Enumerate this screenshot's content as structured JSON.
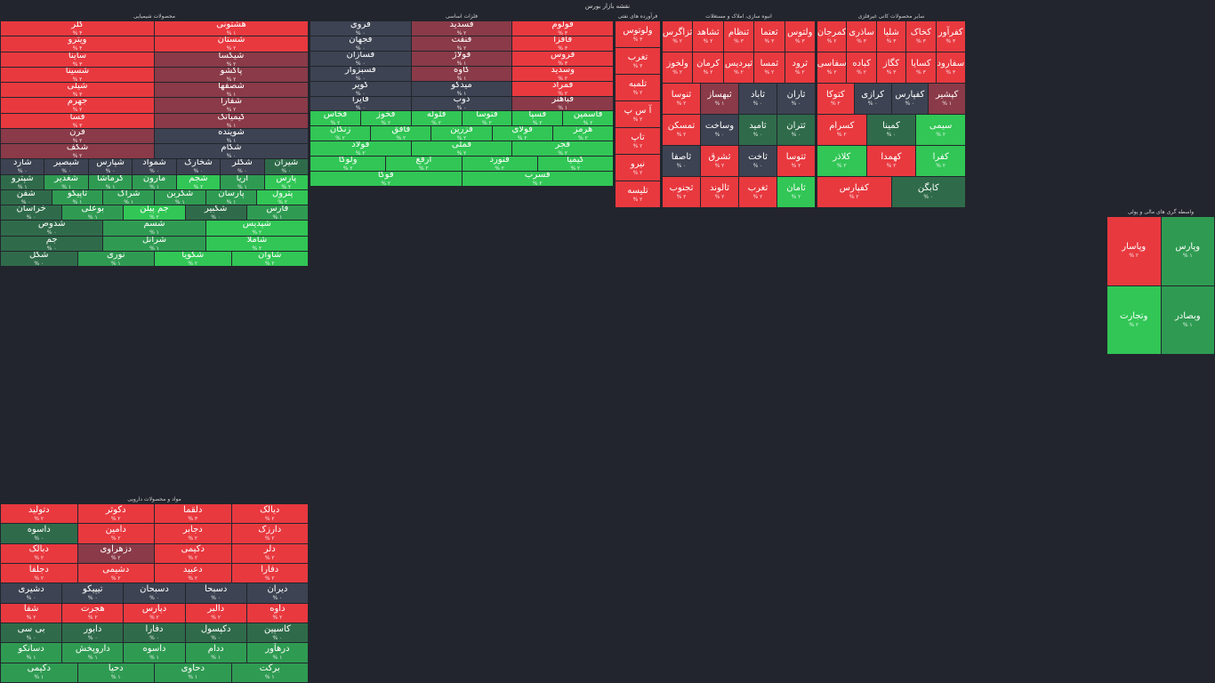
{
  "page_title": "نقشه بازار بورس",
  "colors": {
    "r": "#e8393f",
    "m": "#8a3a48",
    "n": "#3d4352",
    "d": "#2f6b4a",
    "g": "#2f9b52",
    "G": "#31c655"
  },
  "sectors": [
    {
      "title": "محصولات شیمیایی",
      "tiles": [
        [
          "هشتونی",
          "r",
          "% ۱"
        ],
        [
          "کلر",
          "r",
          "% ۴"
        ],
        [
          "شستان",
          "r",
          "% ۲"
        ],
        [
          "ویترو",
          "r",
          "% ۴"
        ],
        [
          "شیکسا",
          "m",
          "% ۲"
        ],
        [
          "ساینا",
          "r",
          "% ۳"
        ],
        [
          "پاکشو",
          "m",
          "% ۲"
        ],
        [
          "شسینا",
          "r",
          "% ۲"
        ],
        [
          "شصفها",
          "m",
          "% ۱"
        ],
        [
          "شیلی",
          "r",
          "% ۳"
        ],
        [
          "شفارا",
          "m",
          "% ۲"
        ],
        [
          "جهرم",
          "r",
          "% ۲"
        ],
        [
          "کیمیاتک",
          "m",
          "% ۱"
        ],
        [
          "فسا",
          "r",
          "% ۳"
        ],
        [
          "شوینده",
          "n",
          "% ۱"
        ],
        [
          "قرن",
          "m",
          "% ۲"
        ],
        [
          "شکام",
          "n",
          "% ۰"
        ],
        [
          "شکف",
          "m",
          "% ۲"
        ],
        [
          "شیران",
          "d",
          "% ۰"
        ],
        [
          "شکلر",
          "n",
          "% ۰"
        ],
        [
          "شخارک",
          "n",
          "% ۰"
        ],
        [
          "شمواد",
          "n",
          "% ۰"
        ],
        [
          "شپارس",
          "n",
          "% ۰"
        ],
        [
          "شبصیر",
          "n",
          "% ۰"
        ],
        [
          "شارد",
          "n",
          "% ۰"
        ],
        [
          "پارس",
          "G",
          "% ۲"
        ],
        [
          "آریا",
          "g",
          "% ۱"
        ],
        [
          "شجم",
          "G",
          "% ۲"
        ],
        [
          "مارون",
          "g",
          "% ۱"
        ],
        [
          "کرماشا",
          "g",
          "% ۱"
        ],
        [
          "شغدیر",
          "g",
          "% ۱"
        ],
        [
          "شپترو",
          "d",
          "% ۱"
        ],
        [
          "پترول",
          "G",
          "% ۲"
        ],
        [
          "پارسان",
          "g",
          "% ۱"
        ],
        [
          "شکربن",
          "g",
          "% ۱"
        ],
        [
          "شراک",
          "g",
          "% ۱"
        ],
        [
          "تاپیکو",
          "g",
          "% ۱"
        ],
        [
          "شفن",
          "d",
          "% ۰"
        ],
        [
          "فارس",
          "g",
          "% ۱"
        ],
        [
          "شکبیر",
          "d",
          "% ۰"
        ],
        [
          "جم پیلن",
          "G",
          "% ۲"
        ],
        [
          "بوعلی",
          "g",
          "% ۱"
        ],
        [
          "خراسان",
          "d",
          "% ۰"
        ],
        [
          "شپدیس",
          "G",
          "% ۲"
        ],
        [
          "شسم",
          "g",
          "% ۱"
        ],
        [
          "شدوص",
          "d",
          "% ۰"
        ],
        [
          "شاملا",
          "G",
          "% ۲"
        ],
        [
          "شرانل",
          "g",
          "% ۱"
        ],
        [
          "جم",
          "d",
          "% ۰"
        ],
        [
          "شاوان",
          "G",
          "% ۲"
        ],
        [
          "شکویا",
          "G",
          "% ۲"
        ],
        [
          "نوری",
          "g",
          "% ۱"
        ],
        [
          "شگل",
          "d",
          "% ۰"
        ]
      ]
    },
    {
      "title": "فلزات اساسی",
      "tiles": [
        [
          "فولوم",
          "r",
          "% ۳"
        ],
        [
          "فسدید",
          "m",
          "% ۲"
        ],
        [
          "فروی",
          "n",
          "% ۰"
        ],
        [
          "فافزا",
          "r",
          "% ۳"
        ],
        [
          "فنفت",
          "m",
          "% ۲"
        ],
        [
          "فجهان",
          "n",
          "% ۰"
        ],
        [
          "فروس",
          "r",
          "% ۳"
        ],
        [
          "فولاژ",
          "m",
          "% ۱"
        ],
        [
          "فسازان",
          "n",
          "% ۰"
        ],
        [
          "وسدید",
          "r",
          "% ۲"
        ],
        [
          "کاوه",
          "m",
          "% ۱"
        ],
        [
          "فسبزوار",
          "n",
          "% ۰"
        ],
        [
          "فمراد",
          "r",
          "% ۲"
        ],
        [
          "میدکو",
          "n",
          "% ۱"
        ],
        [
          "کویر",
          "n",
          "% ۰"
        ],
        [
          "فباهنر",
          "m",
          "% ۱"
        ],
        [
          "ذوب",
          "n",
          "% ۰"
        ],
        [
          "فایرا",
          "n",
          "% ۰"
        ],
        [
          "فاسمین",
          "G",
          "% ۲"
        ],
        [
          "فسپا",
          "G",
          "% ۲"
        ],
        [
          "فتوسا",
          "G",
          "% ۲"
        ],
        [
          "فلوله",
          "G",
          "% ۲"
        ],
        [
          "فخوز",
          "G",
          "% ۲"
        ],
        [
          "فخاس",
          "G",
          "% ۲"
        ],
        [
          "هرمز",
          "G",
          "% ۲"
        ],
        [
          "فولای",
          "G",
          "% ۲"
        ],
        [
          "فزرین",
          "G",
          "% ۲"
        ],
        [
          "فافق",
          "G",
          "% ۲"
        ],
        [
          "زنگان",
          "G",
          "% ۲"
        ],
        [
          "فجر",
          "G",
          "% ۲"
        ],
        [
          "فملی",
          "G",
          "% ۲"
        ],
        [
          "فولاد",
          "G",
          "% ۲"
        ],
        [
          "کیمیا",
          "G",
          "% ۲"
        ],
        [
          "فنورد",
          "G",
          "% ۲"
        ],
        [
          "ارفع",
          "G",
          "% ۲"
        ],
        [
          "ولوکا",
          "G",
          "% ۲"
        ],
        [
          "فسرب",
          "G",
          "% ۲"
        ],
        [
          "فوکا",
          "G",
          "% ۲"
        ]
      ]
    },
    {
      "title": "فرآورده های نفتی",
      "tiles": [
        [
          "ولوتوس",
          "r",
          "% ۳"
        ],
        [
          "تغرب",
          "r",
          "% ۳"
        ],
        [
          "تلمبه",
          "r",
          "% ۲"
        ],
        [
          "آ س پ",
          "r",
          "% ۲"
        ],
        [
          "تاپ",
          "r",
          "% ۲"
        ],
        [
          "نیرو",
          "r",
          "% ۲"
        ],
        [
          "تلیسه",
          "r",
          "% ۲"
        ]
      ]
    },
    {
      "title": "انبوه سازی، املاک و مستغلات",
      "tiles": [
        [
          "ولتوس",
          "r",
          "% ۳"
        ],
        [
          "ثعتما",
          "r",
          "% ۳"
        ],
        [
          "ثنظام",
          "r",
          "% ۳"
        ],
        [
          "ثشاهد",
          "r",
          "% ۲"
        ],
        [
          "ثزاگرس",
          "r",
          "% ۲"
        ],
        [
          "ثرود",
          "r",
          "% ۲"
        ],
        [
          "ثمسا",
          "r",
          "% ۲"
        ],
        [
          "ثپردیس",
          "r",
          "% ۲"
        ],
        [
          "کرمان",
          "r",
          "% ۲"
        ],
        [
          "ولخوز",
          "r",
          "% ۲"
        ],
        [
          "ثاران",
          "n",
          "% ۰"
        ],
        [
          "ثاباد",
          "n",
          "% ۰"
        ],
        [
          "ثبهساز",
          "m",
          "% ۱"
        ],
        [
          "ثنوسا",
          "r",
          "% ۲"
        ],
        [
          "ثتران",
          "d",
          "% ۰"
        ],
        [
          "ثامید",
          "d",
          "% ۰"
        ],
        [
          "وساخت",
          "n",
          "% ۰"
        ],
        [
          "تمسکن",
          "r",
          "% ۲"
        ],
        [
          "ثتوسا",
          "r",
          "% ۲"
        ],
        [
          "ثاخت",
          "n",
          "% ۰"
        ],
        [
          "ثشرق",
          "r",
          "% ۲"
        ],
        [
          "ثاصفا",
          "n",
          "% ۰"
        ],
        [
          "ثامان",
          "G",
          "% ۲"
        ],
        [
          "ثغرب",
          "r",
          "% ۲"
        ],
        [
          "ثالوند",
          "r",
          "% ۲"
        ],
        [
          "ثجنوب",
          "r",
          "% ۲"
        ]
      ]
    },
    {
      "title": "سایر محصولات کانی غیرفلزی",
      "tiles": [
        [
          "کفرآور",
          "r",
          "% ۳"
        ],
        [
          "کخاک",
          "r",
          "% ۳"
        ],
        [
          "شلیا",
          "r",
          "% ۳"
        ],
        [
          "ساذری",
          "r",
          "% ۳"
        ],
        [
          "کمرجان",
          "r",
          "% ۲"
        ],
        [
          "سفارود",
          "r",
          "% ۳"
        ],
        [
          "کسایا",
          "r",
          "% ۳"
        ],
        [
          "کگاز",
          "r",
          "% ۳"
        ],
        [
          "کباده",
          "r",
          "% ۲"
        ],
        [
          "سفاسی",
          "r",
          "% ۲"
        ],
        [
          "کپشیر",
          "m",
          "% ۱"
        ],
        [
          "کفپارس",
          "n",
          "% ۰"
        ],
        [
          "کرازی",
          "n",
          "% ۰"
        ],
        [
          "کتوکا",
          "r",
          "% ۲"
        ],
        [
          "سیمی",
          "G",
          "% ۲"
        ],
        [
          "کمینا",
          "d",
          "% ۰"
        ],
        [
          "کسرام",
          "r",
          "% ۲"
        ],
        [
          "کفرا",
          "G",
          "% ۲"
        ],
        [
          "کهمدا",
          "r",
          "% ۲"
        ],
        [
          "کلاذر",
          "G",
          "% ۲"
        ],
        [
          "کابگن",
          "d",
          "% ۰"
        ],
        [
          "کفپارس",
          "r",
          "% ۲"
        ]
      ]
    },
    {
      "title": "مواد و محصولات دارویی",
      "tiles": [
        [
          "دیالک",
          "r",
          "% ۲"
        ],
        [
          "دلقما",
          "r",
          "% ۳"
        ],
        [
          "دکوثر",
          "r",
          "% ۲"
        ],
        [
          "دتولید",
          "r",
          "% ۲"
        ],
        [
          "دارزک",
          "r",
          "% ۲"
        ],
        [
          "دجابر",
          "r",
          "% ۲"
        ],
        [
          "دامین",
          "r",
          "% ۲"
        ],
        [
          "داسوه",
          "d",
          "% ۰"
        ],
        [
          "دلر",
          "r",
          "% ۲"
        ],
        [
          "دکیمی",
          "r",
          "% ۲"
        ],
        [
          "دزهراوی",
          "m",
          "% ۲"
        ],
        [
          "دبالک",
          "r",
          "% ۲"
        ],
        [
          "دفارا",
          "r",
          "% ۲"
        ],
        [
          "دعبید",
          "r",
          "% ۲"
        ],
        [
          "دشیمی",
          "r",
          "% ۲"
        ],
        [
          "دجلفا",
          "r",
          "% ۲"
        ],
        [
          "دیران",
          "n",
          "% ۰"
        ],
        [
          "دسبحا",
          "n",
          "% ۰"
        ],
        [
          "دسبحان",
          "n",
          "% ۰"
        ],
        [
          "تیپیکو",
          "n",
          "% ۰"
        ],
        [
          "دشیری",
          "n",
          "% ۰"
        ],
        [
          "داوه",
          "r",
          "% ۲"
        ],
        [
          "دالبر",
          "r",
          "% ۲"
        ],
        [
          "دپارس",
          "r",
          "% ۲"
        ],
        [
          "هجرت",
          "r",
          "% ۲"
        ],
        [
          "شفا",
          "r",
          "% ۲"
        ],
        [
          "کاسپین",
          "d",
          "% ۰"
        ],
        [
          "دکپسول",
          "d",
          "% ۰"
        ],
        [
          "دفارا",
          "d",
          "% ۰"
        ],
        [
          "دابور",
          "d",
          "% ۰"
        ],
        [
          "بی سی",
          "d",
          "% ۰"
        ],
        [
          "درهآور",
          "g",
          "% ۱"
        ],
        [
          "ددام",
          "g",
          "% ۱"
        ],
        [
          "داسوه",
          "g",
          "% ۱"
        ],
        [
          "داروپخش",
          "g",
          "% ۱"
        ],
        [
          "دسانکو",
          "g",
          "% ۱"
        ],
        [
          "برکت",
          "g",
          "% ۱"
        ],
        [
          "دحاوی",
          "g",
          "% ۱"
        ],
        [
          "دحیا",
          "g",
          "% ۱"
        ],
        [
          "دکیمی",
          "g",
          "% ۱"
        ]
      ]
    },
    {
      "title": "واسطه گری های مالی و پولی",
      "tiles": [
        [
          "وپارس",
          "g",
          "% ۱"
        ],
        [
          "وپاسار",
          "r",
          "% ۲"
        ],
        [
          "وبصادر",
          "g",
          "% ۱"
        ],
        [
          "وتجارت",
          "G",
          "% ۲"
        ]
      ]
    }
  ]
}
